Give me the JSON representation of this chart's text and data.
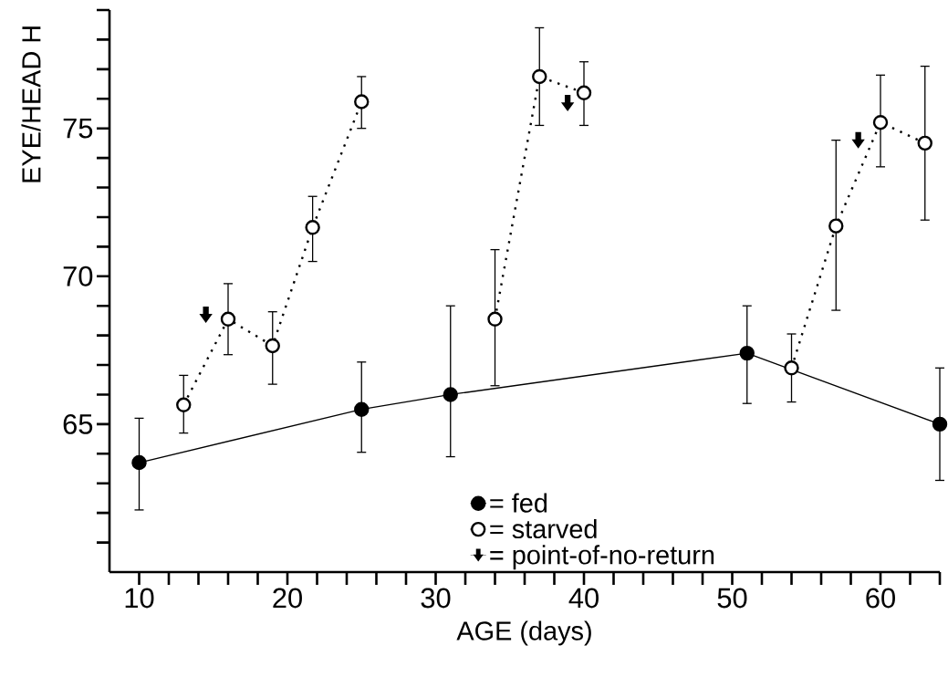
{
  "chart_data": {
    "type": "line",
    "xlabel": "AGE (days)",
    "ylabel": "EYE/HEAD H",
    "xlim": [
      8,
      64
    ],
    "ylim": [
      60,
      79
    ],
    "xticks": [
      10,
      {
        "value": 12,
        "label": null
      },
      {
        "value": 14,
        "label": null
      },
      {
        "value": 16,
        "label": null
      },
      {
        "value": 18,
        "label": null
      },
      20,
      {
        "value": 22,
        "label": null
      },
      {
        "value": 24,
        "label": null
      },
      {
        "value": 26,
        "label": null
      },
      {
        "value": 28,
        "label": null
      },
      30,
      {
        "value": 32,
        "label": null
      },
      {
        "value": 34,
        "label": null
      },
      {
        "value": 36,
        "label": null
      },
      {
        "value": 38,
        "label": null
      },
      40,
      {
        "value": 42,
        "label": null
      },
      {
        "value": 44,
        "label": null
      },
      {
        "value": 46,
        "label": null
      },
      {
        "value": 48,
        "label": null
      },
      50,
      {
        "value": 52,
        "label": null
      },
      {
        "value": 54,
        "label": null
      },
      {
        "value": 56,
        "label": null
      },
      {
        "value": 58,
        "label": null
      },
      60,
      {
        "value": 62,
        "label": null
      },
      {
        "value": 64,
        "label": null
      }
    ],
    "yticks": [
      {
        "value": 61,
        "label": null
      },
      {
        "value": 62,
        "label": null
      },
      {
        "value": 63,
        "label": null
      },
      {
        "value": 64,
        "label": null
      },
      65,
      {
        "value": 66,
        "label": null
      },
      {
        "value": 67,
        "label": null
      },
      {
        "value": 68,
        "label": null
      },
      {
        "value": 69,
        "label": null
      },
      70,
      {
        "value": 71,
        "label": null
      },
      {
        "value": 72,
        "label": null
      },
      {
        "value": 73,
        "label": null
      },
      {
        "value": 74,
        "label": null
      },
      75,
      {
        "value": 76,
        "label": null
      },
      {
        "value": 77,
        "label": null
      },
      {
        "value": 78,
        "label": null
      },
      {
        "value": 79,
        "label": null
      }
    ],
    "grid": false,
    "legend": "bottom",
    "series": [
      {
        "name": "= fed",
        "color": "#000000",
        "marker": "circle",
        "line_style": "solid",
        "x": [
          10,
          25,
          31,
          51,
          64
        ],
        "values": [
          63.7,
          65.5,
          66.0,
          67.4,
          65.0
        ],
        "errors": [
          [
            62.1,
            65.2
          ],
          [
            64.05,
            67.1
          ],
          [
            63.9,
            69.0
          ],
          [
            65.7,
            69.0
          ],
          [
            63.1,
            66.9
          ]
        ]
      },
      {
        "name": "= starved",
        "color": "#000000",
        "marker": "circle",
        "colors": [
          "#ffffff",
          "#ffffff",
          "#ffffff",
          "#ffffff",
          "#ffffff",
          null,
          "#ffffff",
          "#ffffff",
          "#ffffff",
          null,
          "#ffffff",
          "#ffffff",
          "#ffffff",
          "#ffffff"
        ],
        "line_style": "dotted",
        "x": [
          13,
          16,
          19,
          21.7,
          25,
          28,
          34,
          37,
          40,
          45,
          54,
          57,
          60,
          63
        ],
        "values": [
          65.65,
          68.55,
          67.65,
          71.65,
          75.9,
          null,
          68.55,
          76.75,
          76.2,
          null,
          66.9,
          71.7,
          75.2,
          74.5
        ],
        "errors": [
          [
            64.7,
            66.65
          ],
          [
            67.35,
            69.75
          ],
          [
            66.35,
            68.8
          ],
          [
            70.5,
            72.7
          ],
          [
            75.0,
            76.75
          ],
          null,
          [
            66.3,
            70.9
          ],
          [
            75.1,
            78.4
          ],
          [
            75.1,
            77.25
          ],
          null,
          [
            65.75,
            68.05
          ],
          [
            68.85,
            74.6
          ],
          [
            73.7,
            76.8
          ],
          [
            71.9,
            77.1
          ]
        ]
      },
      {
        "name": "= point-of-no-return",
        "type": "scatter",
        "color": "#000000",
        "marker": "triangle",
        "x": [
          14.5,
          38.9,
          58.5
        ],
        "values": [
          68.7,
          75.85,
          74.6
        ]
      }
    ]
  }
}
